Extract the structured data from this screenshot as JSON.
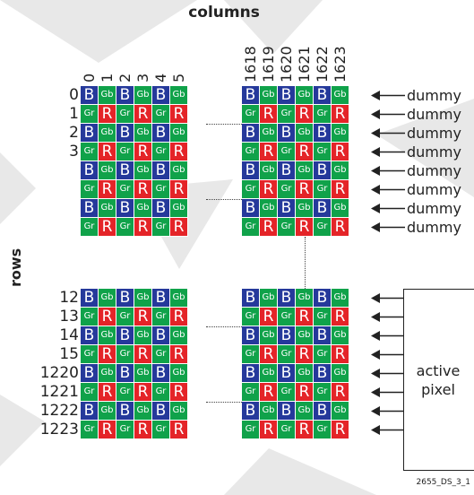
{
  "columns_title": "columns",
  "rows_title": "rows",
  "column_numbers": {
    "left": [
      "0",
      "1",
      "2",
      "3",
      "4",
      "5"
    ],
    "right": [
      "1618",
      "1619",
      "1620",
      "1621",
      "1622",
      "1623"
    ]
  },
  "row_numbers": [
    "0",
    "1",
    "2",
    "3",
    "",
    "",
    "",
    "",
    "12",
    "13",
    "14",
    "15",
    "1220",
    "1221",
    "1222",
    "1223"
  ],
  "cell_letters": {
    "b": "B",
    "gb": "Gb",
    "gr": "Gr",
    "r": "R"
  },
  "colors": {
    "blue": "#25399b",
    "green": "#10a24a",
    "red": "#e42428",
    "watermark": "#e8e8e8",
    "line": "#222222"
  },
  "row_labels": {
    "dummy": "dummy"
  },
  "active_pixel": {
    "line1": "active",
    "line2": "pixel"
  },
  "figure_id": "2655_DS_3_1"
}
